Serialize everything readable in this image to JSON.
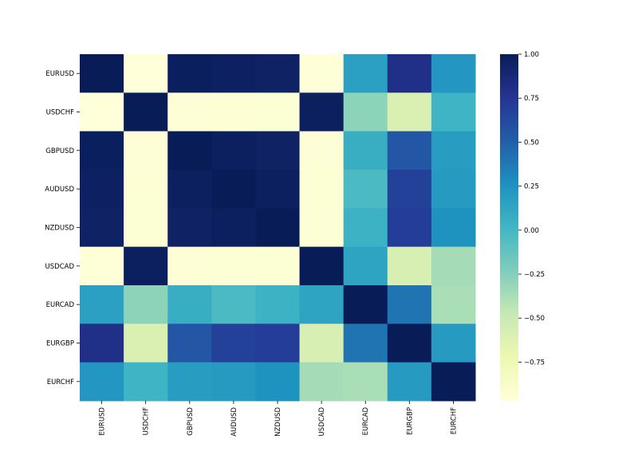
{
  "chart_data": {
    "type": "heatmap",
    "title": "",
    "xlabel": "",
    "ylabel": "",
    "x_categories": [
      "EURUSD",
      "USDCHF",
      "GBPUSD",
      "AUDUSD",
      "NZDUSD",
      "USDCAD",
      "EURCAD",
      "EURGBP",
      "EURCHF"
    ],
    "y_categories": [
      "EURUSD",
      "USDCHF",
      "GBPUSD",
      "AUDUSD",
      "NZDUSD",
      "USDCAD",
      "EURCAD",
      "EURGBP",
      "EURCHF"
    ],
    "values": [
      [
        1.0,
        -0.97,
        0.98,
        0.96,
        0.95,
        -0.96,
        0.16,
        0.8,
        0.22
      ],
      [
        -0.97,
        1.0,
        -0.95,
        -0.94,
        -0.93,
        0.97,
        -0.28,
        -0.6,
        0.03
      ],
      [
        0.98,
        -0.95,
        1.0,
        0.97,
        0.95,
        -0.95,
        0.07,
        0.55,
        0.18
      ],
      [
        0.96,
        -0.94,
        0.97,
        1.0,
        0.97,
        -0.93,
        -0.03,
        0.68,
        0.2
      ],
      [
        0.95,
        -0.93,
        0.95,
        0.97,
        1.0,
        -0.93,
        0.04,
        0.7,
        0.25
      ],
      [
        -0.96,
        0.97,
        -0.95,
        -0.93,
        -0.93,
        1.0,
        0.14,
        -0.58,
        -0.36
      ],
      [
        0.16,
        -0.28,
        0.07,
        -0.03,
        0.04,
        0.14,
        1.0,
        0.4,
        -0.38
      ],
      [
        0.8,
        -0.6,
        0.55,
        0.68,
        0.7,
        -0.58,
        0.4,
        1.0,
        0.2
      ],
      [
        0.22,
        0.03,
        0.18,
        0.2,
        0.25,
        -0.36,
        -0.38,
        0.2,
        1.0
      ]
    ],
    "colormap": "YlGnBu",
    "vmin": -0.97,
    "vmax": 1.0,
    "colorbar": {
      "ticks": [
        1.0,
        0.75,
        0.5,
        0.25,
        0.0,
        -0.25,
        -0.5,
        -0.75
      ],
      "tick_labels": [
        "1.00",
        "0.75",
        "0.50",
        "0.25",
        "0.00",
        "−0.25",
        "−0.50",
        "−0.75"
      ],
      "placement": "right"
    },
    "grid": false
  }
}
